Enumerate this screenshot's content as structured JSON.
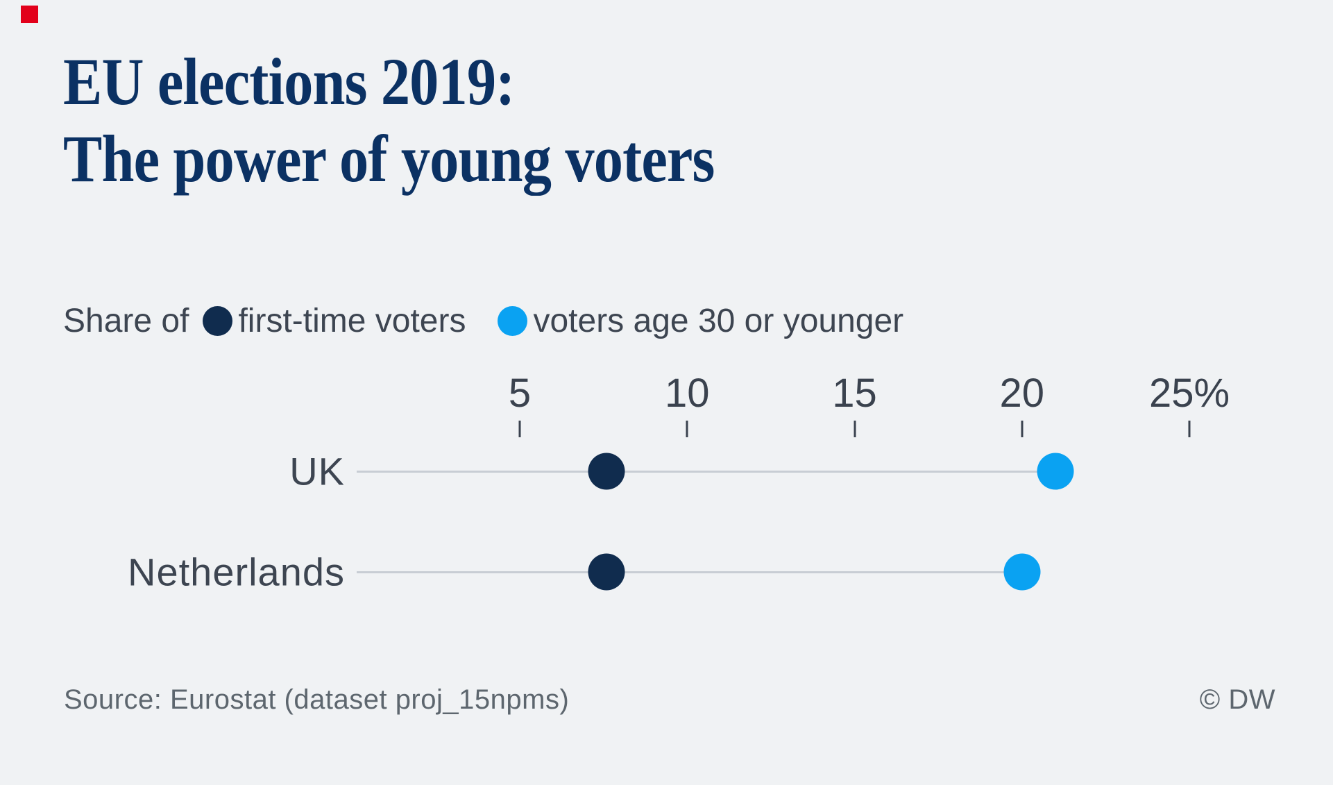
{
  "page": {
    "background": "#f0f2f4"
  },
  "brand_marker_color": "#e2001a",
  "header": {
    "title_line1": "EU elections 2019:",
    "title_line2": "The power of young voters",
    "title_color": "#0b3163"
  },
  "legend": {
    "prefix": "Share of",
    "text_color": "#3d4551",
    "items": [
      {
        "label": "first-time voters",
        "color": "#102c4e"
      },
      {
        "label": "voters age 30 or younger",
        "color": "#0aa2f2"
      }
    ]
  },
  "chart_data": {
    "type": "scatter",
    "variant": "dumbbell-dot-plot",
    "title": "EU elections 2019: The power of young voters",
    "categories": [
      "UK",
      "Netherlands"
    ],
    "series": [
      {
        "name": "first-time voters",
        "color": "#102c4e",
        "values": [
          7.6,
          7.6
        ]
      },
      {
        "name": "voters age 30 or younger",
        "color": "#0aa2f2",
        "values": [
          21,
          20
        ]
      }
    ],
    "x_ticks": [
      5,
      10,
      15,
      20,
      25
    ],
    "x_tick_labels": [
      "5",
      "10",
      "15",
      "20",
      "25%"
    ],
    "xlim": [
      0,
      27
    ],
    "unit": "%",
    "grid": false,
    "legend_position": "top",
    "connector_color": "#c8cdd4",
    "tick_color": "#3a424e",
    "label_color": "#3d4551"
  },
  "footer": {
    "source": "Source: Eurostat (dataset proj_15npms)",
    "copyright": "© DW",
    "text_color": "#5d666e"
  }
}
